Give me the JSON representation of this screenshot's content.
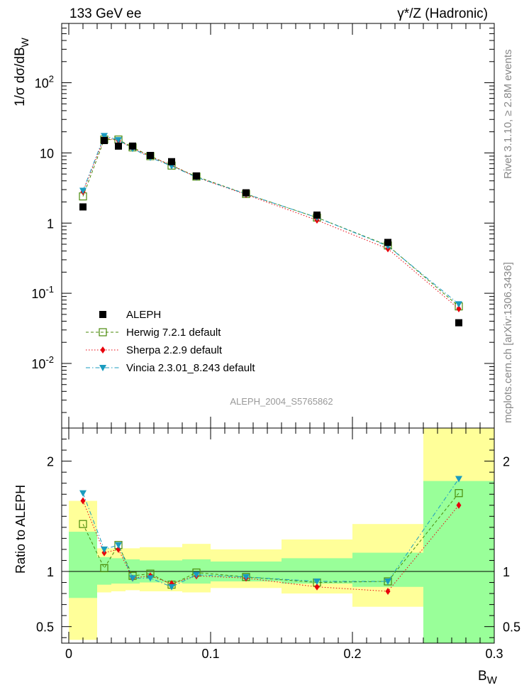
{
  "header": {
    "left": "133 GeV ee",
    "right": "γ*/Z (Hadronic)"
  },
  "side_labels": {
    "rivet": "Rivet 3.1.10, ≥ 2.8M events",
    "mcplots": "mcplots.cern.ch [arXiv:1306.3436]"
  },
  "watermark": "ALEPH_2004_S5765862",
  "colors": {
    "data": "#000000",
    "herwig": "#4a8a0a",
    "sherpa": "#e8000b",
    "vincia": "#1a9bbf",
    "band_inner": "#99ff99",
    "band_outer": "#ffff99"
  },
  "chart_data": [
    {
      "type": "scatter",
      "panel": "main",
      "ylabel": "1/σ dσ/dB_W",
      "ylabel_main": "1/σ  dσ/dB",
      "ylabel_sub": "W",
      "yscale": "log",
      "ylim": [
        0.0012,
        700
      ],
      "xlim": [
        -0.005,
        0.3
      ],
      "ytick_values": [
        0.01,
        0.1,
        1,
        10,
        100
      ],
      "ytick_labels": [
        {
          "base": "10",
          "exp": "-2"
        },
        {
          "base": "10",
          "exp": "-1"
        },
        {
          "base": "1",
          "exp": ""
        },
        {
          "base": "10",
          "exp": ""
        },
        {
          "base": "10",
          "exp": "2"
        }
      ],
      "x_edges": [
        0,
        0.02,
        0.03,
        0.04,
        0.05,
        0.065,
        0.08,
        0.1,
        0.15,
        0.2,
        0.25,
        0.3
      ],
      "x": [
        0.01,
        0.025,
        0.035,
        0.045,
        0.0575,
        0.0725,
        0.09,
        0.125,
        0.175,
        0.225,
        0.275
      ],
      "series": [
        {
          "name": "ALEPH",
          "key": "data",
          "marker": "square",
          "values": [
            1.7,
            15.0,
            12.5,
            12.5,
            9.2,
            7.5,
            4.7,
            2.7,
            1.3,
            0.53,
            0.038
          ]
        },
        {
          "name": "Herwig 7.2.1 default",
          "key": "herwig",
          "marker": "open-square",
          "dash": "4,3",
          "values": [
            2.4,
            15.5,
            15.5,
            12.0,
            9.0,
            6.6,
            4.6,
            2.6,
            1.2,
            0.48,
            0.065
          ]
        },
        {
          "name": "Sherpa 2.2.9 default",
          "key": "sherpa",
          "marker": "diamond",
          "dash": "1.5,2.5",
          "values": [
            2.8,
            16.5,
            15.0,
            11.8,
            8.8,
            6.7,
            4.5,
            2.55,
            1.1,
            0.43,
            0.06
          ]
        },
        {
          "name": "Vincia 2.3.01_8.243 default",
          "key": "vincia",
          "marker": "triangle-down",
          "dash": "6,3,1.5,3",
          "values": [
            2.9,
            17.5,
            15.3,
            11.5,
            8.6,
            6.5,
            4.5,
            2.6,
            1.2,
            0.47,
            0.07
          ]
        }
      ]
    },
    {
      "type": "scatter",
      "panel": "ratio",
      "ylabel": "Ratio to ALEPH",
      "xlabel": "B_W",
      "xlabel_main": "B",
      "xlabel_sub": "W",
      "ylim": [
        0.35,
        2.3
      ],
      "xlim": [
        -0.005,
        0.3
      ],
      "ytick_values": [
        0.5,
        1,
        2
      ],
      "ytick_labels": [
        "0.5",
        "1",
        "2"
      ],
      "xtick_values": [
        0,
        0.1,
        0.2,
        0.3
      ],
      "xtick_labels": [
        "0",
        "0.1",
        "0.2",
        "0.3"
      ],
      "x_edges": [
        0,
        0.02,
        0.03,
        0.04,
        0.05,
        0.065,
        0.08,
        0.1,
        0.15,
        0.2,
        0.25,
        0.3
      ],
      "band_inner": [
        [
          0.76,
          1.36
        ],
        [
          0.88,
          1.13
        ],
        [
          0.89,
          1.12
        ],
        [
          0.89,
          1.11
        ],
        [
          0.9,
          1.1
        ],
        [
          0.9,
          1.1
        ],
        [
          0.89,
          1.11
        ],
        [
          0.91,
          1.09
        ],
        [
          0.89,
          1.12
        ],
        [
          0.86,
          1.17
        ],
        [
          0.33,
          1.82
        ]
      ],
      "band_outer": [
        [
          0.38,
          1.64
        ],
        [
          0.81,
          1.21
        ],
        [
          0.82,
          1.21
        ],
        [
          0.83,
          1.21
        ],
        [
          0.82,
          1.22
        ],
        [
          0.82,
          1.22
        ],
        [
          0.81,
          1.25
        ],
        [
          0.85,
          1.2
        ],
        [
          0.8,
          1.29
        ],
        [
          0.68,
          1.43
        ],
        [
          0.33,
          2.3
        ]
      ],
      "x": [
        0.01,
        0.025,
        0.035,
        0.045,
        0.0575,
        0.0725,
        0.09,
        0.125,
        0.175,
        0.225,
        0.275
      ],
      "series": [
        {
          "name": "Herwig 7.2.1 default",
          "key": "herwig",
          "marker": "open-square",
          "dash": "4,3",
          "values": [
            1.43,
            1.03,
            1.24,
            0.96,
            0.98,
            0.88,
            0.99,
            0.95,
            0.9,
            0.91,
            1.71
          ]
        },
        {
          "name": "Sherpa 2.2.9 default",
          "key": "sherpa",
          "marker": "diamond",
          "dash": "1.5,2.5",
          "values": [
            1.64,
            1.17,
            1.2,
            0.94,
            0.96,
            0.89,
            0.96,
            0.94,
            0.86,
            0.82,
            1.6
          ]
        },
        {
          "name": "Vincia 2.3.01_8.243 default",
          "key": "vincia",
          "marker": "triangle-down",
          "dash": "6,3,1.5,3",
          "values": [
            1.71,
            1.2,
            1.24,
            0.94,
            0.94,
            0.86,
            0.97,
            0.95,
            0.91,
            0.91,
            1.84
          ]
        }
      ]
    }
  ]
}
